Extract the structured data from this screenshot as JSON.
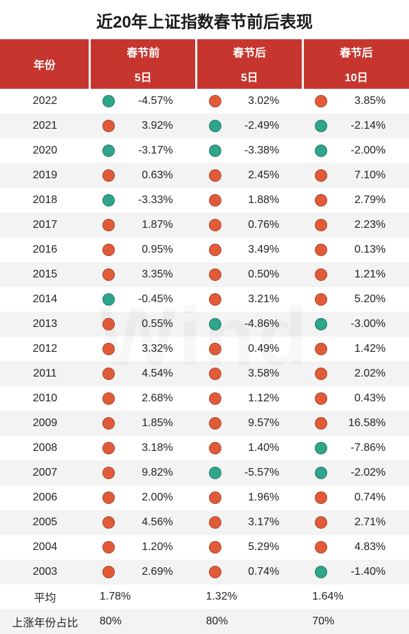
{
  "title": "近20年上证指数春节前后表现",
  "title_fontsize": 24,
  "colors": {
    "header_bg": "#c6362f",
    "header_text": "#ffffff",
    "row_even_bg": "#ffffff",
    "row_odd_bg": "#f3f3f3",
    "text": "#222222",
    "dot_positive": "#e25b39",
    "dot_negative": "#2fa58b",
    "dot_border": "rgba(0,0,0,0.25)"
  },
  "columns": {
    "year": "年份",
    "groups": [
      {
        "top": "春节前",
        "sub": "5日"
      },
      {
        "top": "春节后",
        "sub": "5日"
      },
      {
        "top": "春节后",
        "sub": "10日"
      }
    ]
  },
  "col_widths_pct": [
    22,
    26,
    26,
    26
  ],
  "rows": [
    {
      "year": "2022",
      "vals": [
        "-4.57%",
        "3.02%",
        "3.85%"
      ],
      "signs": [
        "neg",
        "pos",
        "pos"
      ]
    },
    {
      "year": "2021",
      "vals": [
        "3.92%",
        "-2.49%",
        "-2.14%"
      ],
      "signs": [
        "pos",
        "neg",
        "neg"
      ]
    },
    {
      "year": "2020",
      "vals": [
        "-3.17%",
        "-3.38%",
        "-2.00%"
      ],
      "signs": [
        "neg",
        "neg",
        "neg"
      ]
    },
    {
      "year": "2019",
      "vals": [
        "0.63%",
        "2.45%",
        "7.10%"
      ],
      "signs": [
        "pos",
        "pos",
        "pos"
      ]
    },
    {
      "year": "2018",
      "vals": [
        "-3.33%",
        "1.88%",
        "2.79%"
      ],
      "signs": [
        "neg",
        "pos",
        "pos"
      ]
    },
    {
      "year": "2017",
      "vals": [
        "1.87%",
        "0.76%",
        "2.23%"
      ],
      "signs": [
        "pos",
        "pos",
        "pos"
      ]
    },
    {
      "year": "2016",
      "vals": [
        "0.95%",
        "3.49%",
        "0.13%"
      ],
      "signs": [
        "pos",
        "pos",
        "pos"
      ]
    },
    {
      "year": "2015",
      "vals": [
        "3.35%",
        "0.50%",
        "1.21%"
      ],
      "signs": [
        "pos",
        "pos",
        "pos"
      ]
    },
    {
      "year": "2014",
      "vals": [
        "-0.45%",
        "3.21%",
        "5.20%"
      ],
      "signs": [
        "neg",
        "pos",
        "pos"
      ]
    },
    {
      "year": "2013",
      "vals": [
        "0.55%",
        "-4.86%",
        "-3.00%"
      ],
      "signs": [
        "pos",
        "neg",
        "neg"
      ]
    },
    {
      "year": "2012",
      "vals": [
        "3.32%",
        "0.49%",
        "1.42%"
      ],
      "signs": [
        "pos",
        "pos",
        "pos"
      ]
    },
    {
      "year": "2011",
      "vals": [
        "4.54%",
        "3.58%",
        "2.02%"
      ],
      "signs": [
        "pos",
        "pos",
        "pos"
      ]
    },
    {
      "year": "2010",
      "vals": [
        "2.68%",
        "1.12%",
        "0.43%"
      ],
      "signs": [
        "pos",
        "pos",
        "pos"
      ]
    },
    {
      "year": "2009",
      "vals": [
        "1.85%",
        "9.57%",
        "16.58%"
      ],
      "signs": [
        "pos",
        "pos",
        "pos"
      ]
    },
    {
      "year": "2008",
      "vals": [
        "3.18%",
        "1.40%",
        "-7.86%"
      ],
      "signs": [
        "pos",
        "pos",
        "neg"
      ]
    },
    {
      "year": "2007",
      "vals": [
        "9.82%",
        "-5.57%",
        "-2.02%"
      ],
      "signs": [
        "pos",
        "neg",
        "neg"
      ]
    },
    {
      "year": "2006",
      "vals": [
        "2.00%",
        "1.96%",
        "0.74%"
      ],
      "signs": [
        "pos",
        "pos",
        "pos"
      ]
    },
    {
      "year": "2005",
      "vals": [
        "4.56%",
        "3.17%",
        "2.71%"
      ],
      "signs": [
        "pos",
        "pos",
        "pos"
      ]
    },
    {
      "year": "2004",
      "vals": [
        "1.20%",
        "5.29%",
        "4.83%"
      ],
      "signs": [
        "pos",
        "pos",
        "pos"
      ]
    },
    {
      "year": "2003",
      "vals": [
        "2.69%",
        "0.74%",
        "-1.40%"
      ],
      "signs": [
        "pos",
        "pos",
        "neg"
      ]
    }
  ],
  "summary": [
    {
      "label": "平均",
      "vals": [
        "1.78%",
        "1.32%",
        "1.64%"
      ]
    },
    {
      "label": "上涨年份占比",
      "vals": [
        "80%",
        "80%",
        "70%"
      ]
    }
  ],
  "watermark": "Wind"
}
